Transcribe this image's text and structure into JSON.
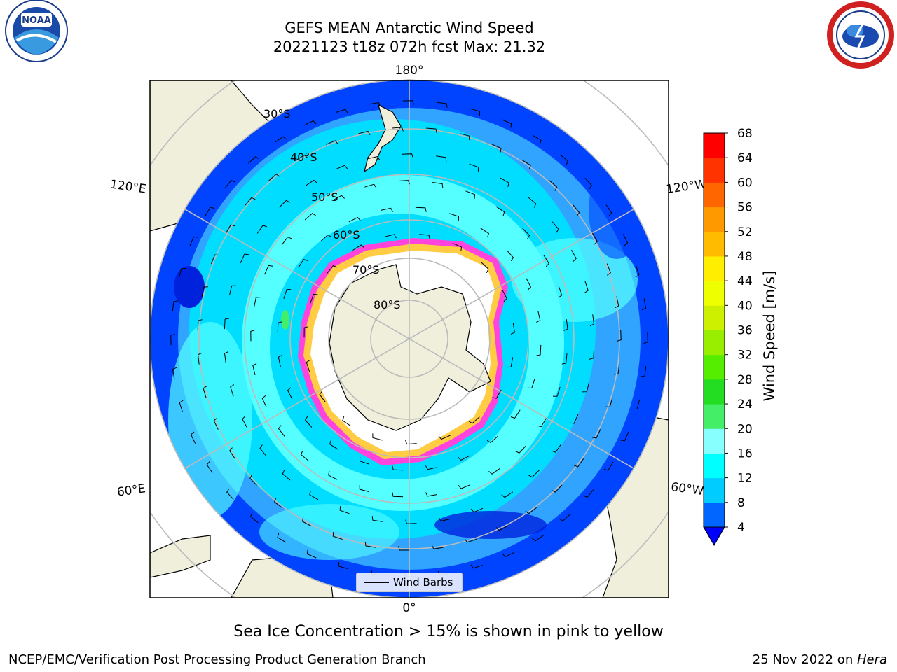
{
  "title": {
    "line1": "GEFS MEAN Antarctic Wind Speed",
    "line2": "20221123 t18z 072h fcst   Max: 21.32"
  },
  "logos": {
    "left": "noaa-logo",
    "right": "nws-logo"
  },
  "map": {
    "projection": "south-polar-stereographic",
    "longitude_labels": {
      "top": "180°",
      "bottom": "0°",
      "upper_left": "120°E",
      "upper_right": "120°W",
      "lower_left": "60°E",
      "lower_right": "60°W"
    },
    "latitude_labels": [
      "30°S",
      "40°S",
      "50°S",
      "60°S",
      "70°S",
      "80°S"
    ],
    "colors": {
      "ocean_4_8": "#0044ff",
      "ocean_8_12": "#33aaff",
      "ocean_12_16": "#00ddff",
      "ocean_16_20": "#55ffff",
      "green_20_24": "#44ee66",
      "land": "#efefdc",
      "ice_edge_pink": "#ff44dd",
      "ice_edge_yellow": "#ffcc44",
      "ice_interior": "#ffffff"
    }
  },
  "legend": {
    "label": "Wind Barbs"
  },
  "colorbar": {
    "label": "Wind Speed [m/s]",
    "ticks": [
      4,
      8,
      12,
      16,
      20,
      24,
      28,
      32,
      36,
      40,
      44,
      48,
      52,
      56,
      60,
      64,
      68
    ],
    "colors": [
      "#0000ff",
      "#0066ff",
      "#00ccff",
      "#00ffff",
      "#88ffff",
      "#44ee66",
      "#22dd22",
      "#55ee00",
      "#99ee00",
      "#ccf000",
      "#eeff00",
      "#ffee00",
      "#ffbb00",
      "#ff9900",
      "#ff6600",
      "#ff3300",
      "#ff0000"
    ],
    "extend": "min"
  },
  "footer": {
    "note": "Sea Ice Concentration > 15% is shown in pink to yellow",
    "left": "NCEP/EMC/Verification Post Processing Product Generation Branch",
    "right_date": "25 Nov 2022 on ",
    "right_machine": "Hera"
  }
}
